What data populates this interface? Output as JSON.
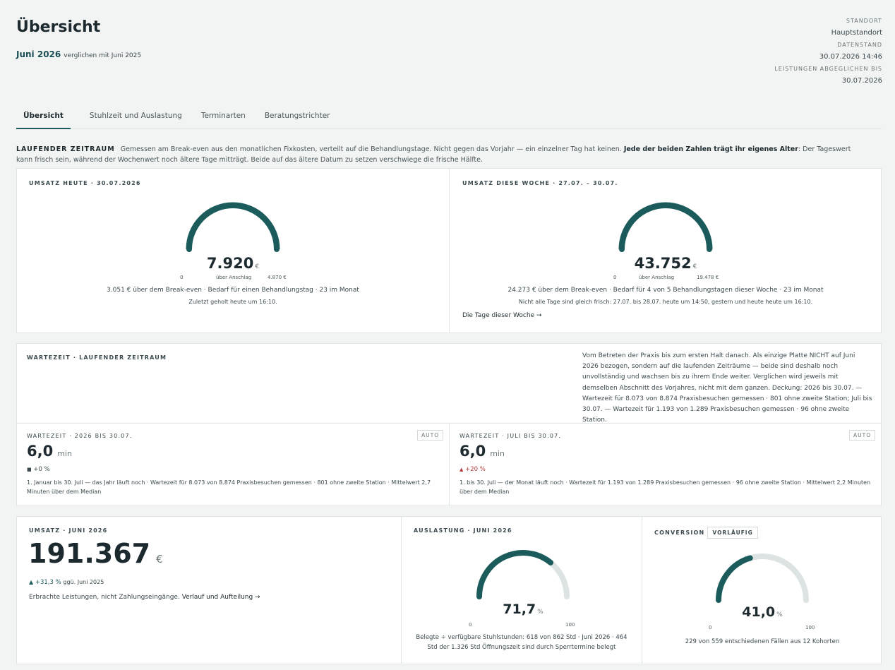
{
  "header": {
    "title": "Übersicht",
    "period": "Juni 2026",
    "compare": "verglichen mit Juni 2025",
    "meta": [
      {
        "label": "STANDORT",
        "value": "Hauptstandort"
      },
      {
        "label": "DATENSTAND",
        "value": "30.07.2026 14:46"
      },
      {
        "label": "LEISTUNGEN ABGEGLICHEN BIS",
        "value": "30.07.2026"
      }
    ]
  },
  "tabs": [
    "Übersicht",
    "Stuhlzeit und Auslastung",
    "Terminarten",
    "Beratungstrichter"
  ],
  "intro": {
    "tag": "LAUFENDER ZEITRAUM",
    "text1": "Gemessen am Break-even aus den monatlichen Fixkosten, verteilt auf die Behandlungstage. Nicht gegen das Vorjahr — ein einzelner Tag hat keinen.",
    "bold": "Jede der beiden Zahlen trägt ihr eigenes Alter",
    "text2": ": Der Tageswert kann frisch sein, während der Wochenwert noch ältere Tage mitträgt. Beide auf das ältere Datum zu setzen verschwiege die frische Hälfte."
  },
  "revenue_today": {
    "label": "UMSATZ HEUTE · 30.07.2026",
    "value": "7.920",
    "unit": "€",
    "min": "0",
    "mid": "über Anschlag",
    "max": "4.870 €",
    "fill": 1.0,
    "line1": "3.051 € über dem Break-even · Bedarf für einen Behandlungstag · 23 im Monat",
    "line2": "Zuletzt geholt heute um 16:10."
  },
  "revenue_week": {
    "label": "UMSATZ DIESE WOCHE · 27.07. – 30.07.",
    "value": "43.752",
    "unit": "€",
    "min": "0",
    "mid": "über Anschlag",
    "max": "19.478 €",
    "fill": 1.0,
    "line1": "24.273 € über dem Break-even · Bedarf für 4 von 5 Behandlungstagen dieser Woche · 23 im Monat",
    "line2": "Nicht alle Tage sind gleich frisch: 27.07. bis 28.07. heute um 14:50, gestern und heute heute um 16:10.",
    "link": "Die Tage dieser Woche →"
  },
  "wait": {
    "label": "WARTEZEIT · LAUFENDER ZEITRAUM",
    "description": "Vom Betreten der Praxis bis zum ersten Halt danach. Als einzige Platte NICHT auf Juni 2026 bezogen, sondern auf die laufenden Zeiträume — beide sind deshalb noch unvollständig und wachsen bis zu ihrem Ende weiter. Verglichen wird jeweils mit demselben Abschnitt des Vorjahres, nicht mit dem ganzen. Deckung: 2026 bis 30.07. — Wartezeit für 8.073 von 8.874 Praxisbesuchen gemessen · 801 ohne zweite Station; Juli bis 30.07. — Wartezeit für 1.193 von 1.289 Praxisbesuchen gemessen · 96 ohne zweite Station.",
    "left": {
      "label": "WARTEZEIT · 2026 BIS 30.07.",
      "badge": "AUTO",
      "value": "6,0",
      "unit": "min",
      "delta": "+0 %",
      "delta_icon": "■",
      "note": "1. Januar bis 30. Juli — das Jahr läuft noch · Wartezeit für 8.073 von 8.874 Praxisbesuchen gemessen · 801 ohne zweite Station · Mittelwert 2,7 Minuten über dem Median"
    },
    "right": {
      "label": "WARTEZEIT · JULI BIS 30.07.",
      "badge": "AUTO",
      "value": "6,0",
      "unit": "min",
      "delta": "+20 %",
      "delta_icon": "▲",
      "note": "1. bis 30. Juli — der Monat läuft noch · Wartezeit für 1.193 von 1.289 Praxisbesuchen gemessen · 96 ohne zweite Station · Mittelwert 2,2 Minuten über dem Median"
    }
  },
  "revenue_month": {
    "label": "UMSATZ · JUNI 2026",
    "value": "191.367",
    "unit": "€",
    "delta_icon": "▲",
    "delta": "+31,3 %",
    "delta_ref": "ggü. Juni 2025",
    "desc": "Erbrachte Leistungen, nicht Zahlungseingänge.",
    "link": "Verlauf und Aufteilung →"
  },
  "utilization": {
    "label": "AUSLASTUNG · JUNI 2026",
    "value": "71,7",
    "unit": "%",
    "min": "0",
    "max": "100",
    "fill": 0.717,
    "desc": "Belegte ÷ verfügbare Stuhlstunden: 618 von 862 Std · Juni 2026 · 464 Std der 1.326 Std Öffnungszeit sind durch Sperrtermine belegt"
  },
  "conversion": {
    "label": "CONVERSION",
    "badge": "VORLÄUFIG",
    "value": "41,0",
    "unit": "%",
    "min": "0",
    "max": "100",
    "fill": 0.41,
    "desc": "229 von 559 entschiedenen Fällen aus 12 Kohorten"
  },
  "colors": {
    "accent": "#1c5b5c",
    "track": "#dde3e3"
  }
}
